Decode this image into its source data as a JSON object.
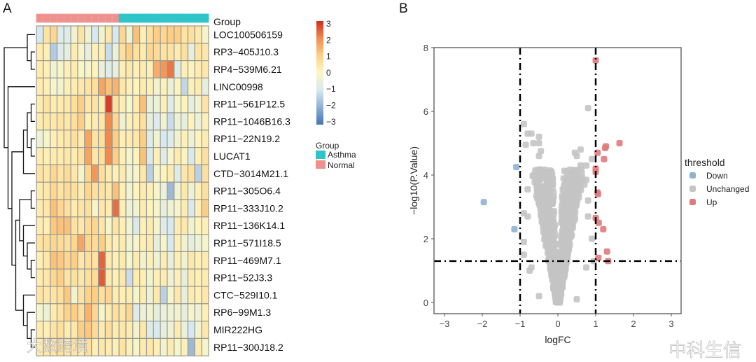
{
  "panels": {
    "a_label": "A",
    "b_label": "B"
  },
  "watermarks": {
    "left": "大数跨境",
    "right": "中科生信"
  },
  "chart_data": [
    {
      "type": "heatmap",
      "title": "",
      "annotation_label": "Group",
      "columns_group": [
        "Normal",
        "Normal",
        "Normal",
        "Normal",
        "Normal",
        "Normal",
        "Normal",
        "Normal",
        "Normal",
        "Normal",
        "Normal",
        "Normal",
        "Asthma",
        "Asthma",
        "Asthma",
        "Asthma",
        "Asthma",
        "Asthma",
        "Asthma",
        "Asthma",
        "Asthma",
        "Asthma",
        "Asthma",
        "Asthma",
        "Asthma"
      ],
      "group_colors": {
        "Asthma": "#2ec4c8",
        "Normal": "#f0908c"
      },
      "group_legend": {
        "title": "Group",
        "items": [
          "Asthma",
          "Normal"
        ]
      },
      "colorbar": {
        "min": -3,
        "max": 3,
        "ticks": [
          "3",
          "2",
          "1",
          "0",
          "−1",
          "−2",
          "−3"
        ],
        "colors": [
          "#4574b3",
          "#d6e8f1",
          "#fdf7c2",
          "#fdcf86",
          "#f08a4f",
          "#d02b22"
        ]
      },
      "rows": [
        "LOC100506159",
        "RP3−405J10.3",
        "RP4−539M6.21",
        "LINC00998",
        "RP11−561P12.5",
        "RP11−1046B16.3",
        "RP11−22N19.2",
        "LUCAT1",
        "CTD−3014M21.1",
        "RP11−305O6.4",
        "RP11−333J10.2",
        "RP11−136K14.1",
        "RP11−571I18.5",
        "RP11−469M7.1",
        "RP11−52J3.3",
        "CTC−529I10.1",
        "RP6−99M1.3",
        "MIR222HG",
        "RP11−300J18.2"
      ],
      "values": [
        [
          -1,
          0.5,
          0.8,
          -0.8,
          -0.8,
          -0.3,
          0.5,
          -0.3,
          -1,
          -0.3,
          0.4,
          -1,
          0.8,
          -0.3,
          1.2,
          0.2,
          0.6,
          1,
          0.8,
          1,
          1,
          0.5,
          0.6,
          0.4,
          -0.2
        ],
        [
          0.3,
          0.2,
          -1.5,
          -0.8,
          -0.6,
          0.3,
          -0.2,
          -0.6,
          0.2,
          0.2,
          -1.2,
          -0.5,
          0.6,
          1,
          0.6,
          0.3,
          0.8,
          0.7,
          0.5,
          0.5,
          0.3,
          0.6,
          -0.6,
          0.5,
          0.4
        ],
        [
          0.3,
          0.2,
          -0.3,
          -0.2,
          0.2,
          0.3,
          -0.1,
          -0.2,
          0.1,
          -0.5,
          -0.8,
          -0.6,
          0.2,
          0.4,
          0.2,
          0.3,
          0.2,
          1.5,
          1.8,
          2.2,
          -0.8,
          0.2,
          0.1,
          0.3,
          0.4
        ],
        [
          0.3,
          0.2,
          -0.2,
          -0.3,
          0.2,
          0.3,
          0.4,
          0.5,
          0.6,
          1.6,
          1.2,
          1.4,
          0.4,
          0.2,
          0.1,
          0.3,
          0.2,
          -0.3,
          0.2,
          -0.5,
          0.1,
          -1.3,
          0.2,
          0.3,
          -0.6
        ],
        [
          0.3,
          0.5,
          0.3,
          0.3,
          0.4,
          0.6,
          1,
          0.4,
          0.5,
          0.3,
          2.8,
          0.6,
          0.2,
          -0.2,
          0.3,
          1.2,
          -0.5,
          -0.4,
          0.2,
          -0.8,
          -0.2,
          0.1,
          -0.6,
          -0.3,
          0.5
        ],
        [
          0.3,
          0.4,
          0.4,
          0.5,
          0.4,
          0.6,
          1,
          0.2,
          0.3,
          0.4,
          2,
          0.8,
          -0.4,
          0.2,
          0.3,
          0.6,
          -0.6,
          -0.8,
          -0.3,
          -1.2,
          -0.4,
          -0.6,
          0.1,
          -0.5,
          0.2
        ],
        [
          -0.4,
          -0.2,
          0.2,
          0.3,
          0.4,
          0.6,
          0.3,
          1.6,
          0.5,
          0.6,
          2,
          1,
          0.2,
          0.3,
          0.4,
          1,
          -0.8,
          -0.3,
          -1,
          -0.8,
          -0.3,
          0.2,
          -0.4,
          0.1,
          0.3
        ],
        [
          0.3,
          0.2,
          0.3,
          0.3,
          0.4,
          0.3,
          0.5,
          1.6,
          0.4,
          0.6,
          2,
          1,
          0.2,
          -0.2,
          0.1,
          1.2,
          -0.9,
          0.2,
          -0.8,
          -0.2,
          0.3,
          0.1,
          -0.9,
          0.2,
          0.6
        ],
        [
          0.5,
          0.4,
          0.8,
          0.5,
          0.7,
          0.4,
          -0.2,
          0.8,
          1.8,
          0.6,
          0.3,
          0.2,
          0.3,
          -0.3,
          -0.2,
          0.4,
          -1.4,
          -0.2,
          0.1,
          0.3,
          -0.8,
          0.4,
          0.6,
          -1.4,
          0.6
        ],
        [
          0.3,
          0.4,
          0.8,
          0.5,
          0.7,
          0.6,
          0.3,
          0.8,
          0.6,
          0.5,
          0.4,
          1.2,
          0.2,
          -0.3,
          0.1,
          0.3,
          0.2,
          -0.2,
          -0.5,
          -1.8,
          -0.3,
          0.4,
          -0.4,
          0.2,
          0.6
        ],
        [
          0.3,
          0.4,
          1.2,
          0.8,
          0.6,
          0.3,
          0.5,
          0.6,
          -0.2,
          0.4,
          0.3,
          2.3,
          0.2,
          -0.4,
          -0.3,
          0.3,
          0.1,
          -0.2,
          -0.6,
          -0.3,
          -0.2,
          0.3,
          -0.9,
          0.2,
          1
        ],
        [
          0.3,
          0.2,
          1.1,
          1.2,
          1.2,
          0.5,
          0.4,
          0.7,
          0.8,
          0.4,
          -0.2,
          0.5,
          0.2,
          -0.3,
          -0.9,
          0.2,
          0.3,
          -0.2,
          -0.8,
          -1,
          0.3,
          0.4,
          -0.3,
          0.1,
          0.2
        ],
        [
          0.5,
          0.6,
          0.8,
          0.7,
          0.6,
          0.8,
          1.6,
          0.8,
          0.7,
          1,
          0.3,
          0.2,
          0.3,
          -0.3,
          -0.2,
          0.2,
          0.3,
          -0.6,
          -0.2,
          -1,
          0.2,
          -0.3,
          -0.6,
          -0.4,
          -0.2
        ],
        [
          0.2,
          0.4,
          1.2,
          1.1,
          0.8,
          1,
          0.4,
          0.6,
          0.5,
          2.4,
          0.3,
          0.2,
          0.3,
          -0.2,
          0.3,
          -0.3,
          0.2,
          -0.4,
          0.3,
          -0.6,
          0.2,
          -0.3,
          0.4,
          0.2,
          0.3
        ],
        [
          0.3,
          0.4,
          0.8,
          1,
          0.5,
          0.6,
          0.4,
          0.6,
          0.7,
          2.5,
          0.3,
          0.2,
          0.4,
          -1.2,
          0.3,
          0.2,
          -0.3,
          0.2,
          0.3,
          -0.4,
          0.2,
          -0.6,
          0.3,
          0.2,
          0.3
        ],
        [
          0.5,
          0.4,
          0.5,
          0.6,
          1.1,
          -0.3,
          0.5,
          0.9,
          1,
          0.6,
          0.8,
          0.3,
          0.2,
          0.3,
          -0.2,
          0.3,
          -0.4,
          0.4,
          -1.4,
          -0.2,
          0.4,
          -0.6,
          0.3,
          0.2,
          0.4
        ],
        [
          -0.2,
          -0.4,
          0.3,
          0.5,
          0.9,
          1,
          0.6,
          1.4,
          0.8,
          -0.2,
          0.3,
          0.6,
          0.4,
          0.8,
          -0.8,
          -0.4,
          -0.3,
          -0.6,
          -0.5,
          -0.4,
          -0.3,
          -0.6,
          -0.2,
          -0.4,
          0.2
        ],
        [
          0.3,
          0.2,
          0.5,
          0.6,
          0.3,
          0.4,
          1,
          1.1,
          0.7,
          0.3,
          0.6,
          0.3,
          0.4,
          0.3,
          -0.3,
          0.4,
          -0.8,
          -0.9,
          -0.6,
          -0.4,
          0.3,
          -0.5,
          -1,
          -0.3,
          0.4
        ],
        [
          0.3,
          0.4,
          0.5,
          0.6,
          0.4,
          0.5,
          0.3,
          0.6,
          0.2,
          0.4,
          0.3,
          0.2,
          0.5,
          0.2,
          -0.2,
          0.3,
          0.4,
          0.2,
          -0.3,
          0.3,
          -0.2,
          0.2,
          -1.8,
          0.3,
          -0.2
        ]
      ]
    },
    {
      "type": "scatter",
      "title": "",
      "xlabel": "logFC",
      "ylabel": "−log10(P.Value)",
      "xlim": [
        -3.3,
        3.2
      ],
      "ylim": [
        -0.3,
        8
      ],
      "xticks": [
        "−3",
        "−2",
        "−1",
        "0",
        "1",
        "2",
        "3"
      ],
      "xtick_values": [
        -3,
        -2,
        -1,
        0,
        1,
        2,
        3
      ],
      "yticks": [
        "0",
        "2",
        "4",
        "6",
        "8"
      ],
      "ytick_values": [
        0,
        2,
        4,
        6,
        8
      ],
      "thresholds": {
        "logFC": [
          -1,
          1
        ],
        "neg_log10_p": 1.3
      },
      "legend": {
        "title": "threshold",
        "position": "right",
        "items": [
          "Down",
          "Unchanged",
          "Up"
        ]
      },
      "colors": {
        "Down": "#8fb3d4",
        "Unchanged": "#c4c4c4",
        "Up": "#e07a7c"
      },
      "series": [
        {
          "name": "Down",
          "points": [
            [
              -1.1,
              4.25
            ],
            [
              -1.96,
              3.15
            ],
            [
              -1.15,
              2.3
            ]
          ]
        },
        {
          "name": "Up",
          "points": [
            [
              1.0,
              7.6
            ],
            [
              1.05,
              4.7
            ],
            [
              1.25,
              4.85
            ],
            [
              1.27,
              4.9
            ],
            [
              1.63,
              5.0
            ],
            [
              1.22,
              4.5
            ],
            [
              1.0,
              4.2
            ],
            [
              1.0,
              4.1
            ],
            [
              1.05,
              3.45
            ],
            [
              1.06,
              3.4
            ],
            [
              1.0,
              2.65
            ],
            [
              1.08,
              2.5
            ],
            [
              1.2,
              2.3
            ],
            [
              1.3,
              1.6
            ],
            [
              1.07,
              1.4
            ],
            [
              1.33,
              1.3
            ]
          ]
        },
        {
          "name": "Unchanged",
          "points": [
            [
              0.8,
              6.1
            ],
            [
              -0.9,
              5.6
            ],
            [
              -0.8,
              5.3
            ],
            [
              -0.7,
              5.3
            ],
            [
              -0.5,
              5.2
            ],
            [
              -0.85,
              4.95
            ],
            [
              -0.65,
              5.0
            ],
            [
              -0.5,
              5.0
            ],
            [
              -0.5,
              4.6
            ],
            [
              -0.45,
              4.75
            ],
            [
              0.45,
              4.7
            ],
            [
              0.6,
              4.8
            ],
            [
              0.5,
              4.6
            ],
            [
              0.6,
              4.3
            ],
            [
              0.75,
              4.3
            ],
            [
              0.9,
              4.5
            ],
            [
              0.4,
              4.0
            ],
            [
              0.75,
              3.85
            ],
            [
              0.7,
              3.7
            ],
            [
              -0.8,
              3.55
            ],
            [
              -0.9,
              2.8
            ],
            [
              -0.8,
              2.7
            ],
            [
              0.8,
              3.2
            ],
            [
              0.8,
              2.7
            ],
            [
              -0.9,
              1.9
            ],
            [
              -0.9,
              1.5
            ],
            [
              0.9,
              2.0
            ],
            [
              0.95,
              1.3
            ],
            [
              0.75,
              1.1
            ],
            [
              -0.75,
              1.0
            ],
            [
              -0.7,
              1.1
            ],
            [
              -0.5,
              0.2
            ],
            [
              0.5,
              0.1
            ]
          ]
        }
      ]
    }
  ]
}
